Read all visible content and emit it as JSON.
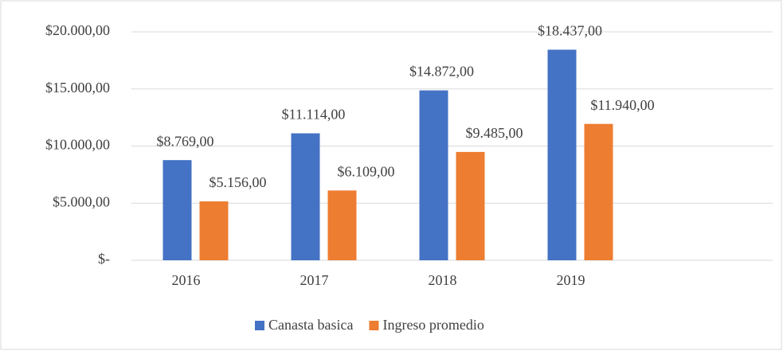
{
  "chart_data": {
    "type": "bar",
    "categories": [
      "2016",
      "2017",
      "2018",
      "2019",
      null
    ],
    "series": [
      {
        "name": "Canasta basica",
        "color": "#4472c4",
        "values": [
          8769,
          11114,
          14872,
          18437,
          null
        ],
        "value_labels": [
          "$8.769,00",
          "$11.114,00",
          "$14.872,00",
          "$18.437,00",
          null
        ]
      },
      {
        "name": "Ingreso promedio",
        "color": "#ed7d31",
        "values": [
          5156,
          6109,
          9485,
          11940,
          null
        ],
        "value_labels": [
          "$5.156,00",
          "$6.109,00",
          "$9.485,00",
          "$11.940,00",
          null
        ]
      }
    ],
    "ylim": [
      0,
      20000
    ],
    "yticks": [
      {
        "value": 0,
        "label": "$-"
      },
      {
        "value": 5000,
        "label": "$5.000,00"
      },
      {
        "value": 10000,
        "label": "$10.000,00"
      },
      {
        "value": 15000,
        "label": "$15.000,00"
      },
      {
        "value": 20000,
        "label": "$20.000,00"
      }
    ],
    "grid": true,
    "legend": "bottom"
  }
}
